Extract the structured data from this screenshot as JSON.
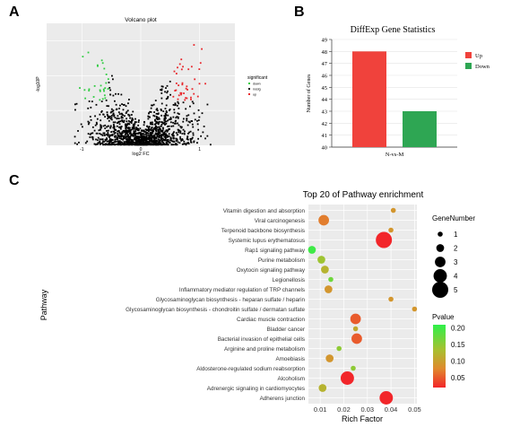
{
  "panels": {
    "a": "A",
    "b": "B",
    "c": "C"
  },
  "chart_data": [
    {
      "panel": "A",
      "type": "scatter",
      "title": "Volcano plot",
      "xlabel": "log2 FC",
      "ylabel": "-log10P",
      "xticks": [
        "-1",
        "0",
        "1"
      ],
      "xlim": [
        -1.6,
        1.6
      ],
      "ylim": [
        0,
        3.5
      ],
      "legend_title": "significant",
      "legend_position": "right",
      "grid": true,
      "series": [
        {
          "name": "down",
          "color": "#2ecc40"
        },
        {
          "name": "nosig",
          "color": "#000000"
        },
        {
          "name": "up",
          "color": "#e8262b"
        }
      ]
    },
    {
      "panel": "B",
      "type": "bar",
      "title": "DiffExp Gene Statistics",
      "xlabel": "",
      "ylabel": "Number of Genes",
      "categories": [
        "N-vs-M"
      ],
      "ylim": [
        40,
        49
      ],
      "yticks": [
        40,
        41,
        42,
        43,
        44,
        45,
        46,
        47,
        48,
        49
      ],
      "legend_position": "right",
      "grid": true,
      "series": [
        {
          "name": "Up",
          "color": "#f0423c",
          "values": [
            48
          ]
        },
        {
          "name": "Down",
          "color": "#2ea653",
          "values": [
            43
          ]
        }
      ]
    },
    {
      "panel": "C",
      "type": "scatter",
      "title": "Top 20 of Pathway enrichment",
      "xlabel": "Rich Factor",
      "ylabel": "Pathway",
      "xlim": [
        0.005,
        0.051
      ],
      "xticks": [
        "0.01",
        "0.02",
        "0.03",
        "0.04",
        "0.05"
      ],
      "grid": true,
      "size_legend": {
        "title": "GeneNumber",
        "values": [
          "1",
          "2",
          "3",
          "4",
          "5"
        ]
      },
      "color_legend": {
        "title": "Pvalue",
        "ticks": [
          "0.20",
          "0.15",
          "0.10",
          "0.05"
        ],
        "range": [
          0.02,
          0.21
        ]
      },
      "points": [
        {
          "pathway": "Vitamin digestion and absorption",
          "rich_factor": 0.041,
          "gene_number": 1,
          "pvalue": 0.09
        },
        {
          "pathway": "Viral carcinogenesis",
          "rich_factor": 0.0115,
          "gene_number": 3,
          "pvalue": 0.07
        },
        {
          "pathway": "Terpenoid backbone biosynthesis",
          "rich_factor": 0.04,
          "gene_number": 1,
          "pvalue": 0.09
        },
        {
          "pathway": "Systemic lupus erythematosus",
          "rich_factor": 0.037,
          "gene_number": 5,
          "pvalue": 0.02
        },
        {
          "pathway": "Rap1 signaling pathway",
          "rich_factor": 0.0065,
          "gene_number": 2,
          "pvalue": 0.2
        },
        {
          "pathway": "Purine metabolism",
          "rich_factor": 0.0105,
          "gene_number": 2,
          "pvalue": 0.14
        },
        {
          "pathway": "Oxytocin signaling pathway",
          "rich_factor": 0.012,
          "gene_number": 2,
          "pvalue": 0.12
        },
        {
          "pathway": "Legionellosis",
          "rich_factor": 0.0145,
          "gene_number": 1,
          "pvalue": 0.17
        },
        {
          "pathway": "Inflammatory mediator regulation of TRP channels",
          "rich_factor": 0.0135,
          "gene_number": 2,
          "pvalue": 0.09
        },
        {
          "pathway": "Glycosaminoglycan biosynthesis - heparan sulfate / heparin",
          "rich_factor": 0.04,
          "gene_number": 1,
          "pvalue": 0.09
        },
        {
          "pathway": "Glycosaminoglycan biosynthesis - chondroitin sulfate / dermatan sulfate",
          "rich_factor": 0.05,
          "gene_number": 1,
          "pvalue": 0.09
        },
        {
          "pathway": "Cardiac muscle contraction",
          "rich_factor": 0.025,
          "gene_number": 3,
          "pvalue": 0.05
        },
        {
          "pathway": "Bladder cancer",
          "rich_factor": 0.025,
          "gene_number": 1,
          "pvalue": 0.11
        },
        {
          "pathway": "Bacterial invasion of epithelial cells",
          "rich_factor": 0.0255,
          "gene_number": 3,
          "pvalue": 0.05
        },
        {
          "pathway": "Arginine and proline metabolism",
          "rich_factor": 0.018,
          "gene_number": 1,
          "pvalue": 0.15
        },
        {
          "pathway": "Amoebiasis",
          "rich_factor": 0.014,
          "gene_number": 2,
          "pvalue": 0.09
        },
        {
          "pathway": "Aldosterone-regulated sodium reabsorption",
          "rich_factor": 0.024,
          "gene_number": 1,
          "pvalue": 0.15
        },
        {
          "pathway": "Alcoholism",
          "rich_factor": 0.0215,
          "gene_number": 4,
          "pvalue": 0.02
        },
        {
          "pathway": "Adrenergic signaling in cardiomyocytes",
          "rich_factor": 0.011,
          "gene_number": 2,
          "pvalue": 0.12
        },
        {
          "pathway": "Adherens junction",
          "rich_factor": 0.038,
          "gene_number": 4,
          "pvalue": 0.02
        }
      ]
    }
  ]
}
